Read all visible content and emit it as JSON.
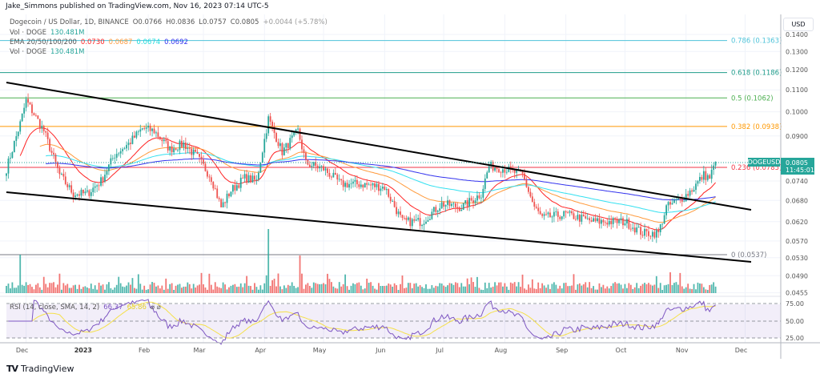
{
  "header": {
    "published": "Jake_Simmons published on TradingView.com, Nov 16, 2023 07:14 UTC-5"
  },
  "legend": {
    "symbol": "Dogecoin / US Dollar, 1D, BINANCE",
    "open": "O0.0766",
    "high": "H0.0836",
    "low": "L0.0757",
    "close": "C0.0805",
    "change": "+0.0044 (+5.78%)",
    "vol_label": "Vol · DOGE",
    "vol_value": "130.481M",
    "ema_label": "EMA 20/50/100/200",
    "ema_values": [
      "0.0730",
      "0.0687",
      "0.0674",
      "0.0692"
    ],
    "vol2_label": "Vol · DOGE",
    "vol2_value": "130.481M"
  },
  "colors": {
    "up": "#26a69a",
    "down": "#ef5350",
    "ema20": "#ff2222",
    "ema50": "#ff9a3c",
    "ema100": "#33e0f0",
    "ema200": "#3333ee",
    "rsi": "#7e57c2",
    "rsi_sma": "#f5e04a"
  },
  "price_axis": {
    "currency": "USD",
    "ticks": [
      "0.1400",
      "0.1300",
      "0.1200",
      "0.1100",
      "0.1000",
      "0.0900",
      "0.0740",
      "0.0680",
      "0.0620",
      "0.0570",
      "0.0530",
      "0.0490",
      "0.0455"
    ],
    "last_symbol": "DOGEUSD",
    "last_price": "0.0805",
    "countdown": "11:45:01"
  },
  "fib_levels": [
    {
      "label": "0.786 (0.1363)",
      "price": 0.1363,
      "color": "#4fc3d9"
    },
    {
      "label": "0.618 (0.1186)",
      "price": 0.1186,
      "color": "#1e9b8a"
    },
    {
      "label": "0.5 (0.1062)",
      "price": 0.1062,
      "color": "#4caf50"
    },
    {
      "label": "0.382 (0.0938)",
      "price": 0.0938,
      "color": "#ff9800"
    },
    {
      "label": "0.236 (0.0785)",
      "price": 0.0785,
      "color": "#f23645"
    },
    {
      "label": "0 (0.0537)",
      "price": 0.0537,
      "color": "#787b86"
    }
  ],
  "rsi": {
    "label": "RSI (14, close, SMA, 14, 2)",
    "value": "66.37",
    "sma_value": "65.86",
    "ticks": [
      "75.00",
      "50.00",
      "25.00"
    ]
  },
  "time_axis": [
    "Dec",
    "2023",
    "Feb",
    "Mar",
    "Apr",
    "May",
    "Jun",
    "Jul",
    "Aug",
    "Sep",
    "Oct",
    "Nov",
    "Dec"
  ],
  "chart_data": {
    "type": "candlestick",
    "symbol": "DOGEUSD",
    "interval": "1D",
    "scale": "log",
    "ylim": [
      0.0455,
      0.14
    ],
    "approx_close_path": [
      [
        "2022-11-21",
        0.078
      ],
      [
        "2022-11-28",
        0.095
      ],
      [
        "2022-12-01",
        0.105
      ],
      [
        "2022-12-10",
        0.092
      ],
      [
        "2022-12-18",
        0.076
      ],
      [
        "2022-12-25",
        0.07
      ],
      [
        "2023-01-01",
        0.07
      ],
      [
        "2023-01-08",
        0.074
      ],
      [
        "2023-01-15",
        0.083
      ],
      [
        "2023-01-22",
        0.087
      ],
      [
        "2023-01-29",
        0.093
      ],
      [
        "2023-02-04",
        0.092
      ],
      [
        "2023-02-12",
        0.085
      ],
      [
        "2023-02-19",
        0.087
      ],
      [
        "2023-02-26",
        0.082
      ],
      [
        "2023-03-05",
        0.075
      ],
      [
        "2023-03-10",
        0.066
      ],
      [
        "2023-03-15",
        0.071
      ],
      [
        "2023-03-22",
        0.075
      ],
      [
        "2023-03-28",
        0.074
      ],
      [
        "2023-04-03",
        0.097
      ],
      [
        "2023-04-10",
        0.084
      ],
      [
        "2023-04-18",
        0.092
      ],
      [
        "2023-04-22",
        0.08
      ],
      [
        "2023-05-01",
        0.078
      ],
      [
        "2023-05-10",
        0.073
      ],
      [
        "2023-05-20",
        0.073
      ],
      [
        "2023-06-01",
        0.072
      ],
      [
        "2023-06-10",
        0.062
      ],
      [
        "2023-06-20",
        0.062
      ],
      [
        "2023-06-30",
        0.067
      ],
      [
        "2023-07-10",
        0.066
      ],
      [
        "2023-07-20",
        0.07
      ],
      [
        "2023-07-24",
        0.079
      ],
      [
        "2023-08-01",
        0.078
      ],
      [
        "2023-08-10",
        0.076
      ],
      [
        "2023-08-16",
        0.066
      ],
      [
        "2023-08-20",
        0.063
      ],
      [
        "2023-09-01",
        0.064
      ],
      [
        "2023-09-15",
        0.062
      ],
      [
        "2023-10-01",
        0.062
      ],
      [
        "2023-10-10",
        0.059
      ],
      [
        "2023-10-18",
        0.059
      ],
      [
        "2023-10-22",
        0.066
      ],
      [
        "2023-10-31",
        0.069
      ],
      [
        "2023-11-05",
        0.072
      ],
      [
        "2023-11-10",
        0.076
      ],
      [
        "2023-11-13",
        0.075
      ],
      [
        "2023-11-16",
        0.0805
      ]
    ]
  }
}
